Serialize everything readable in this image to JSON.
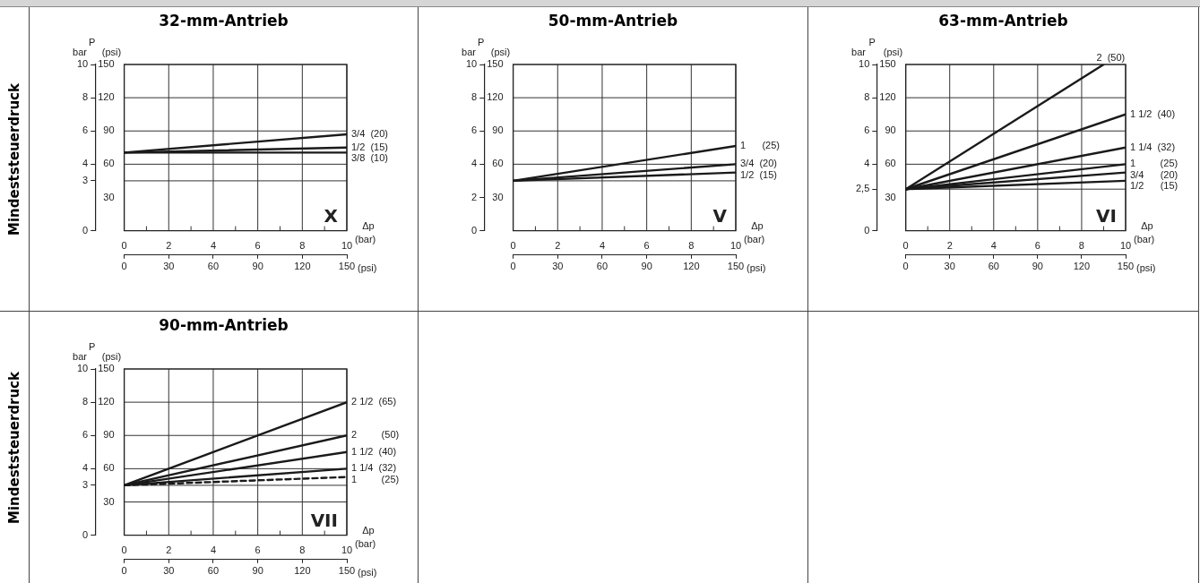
{
  "chart_data": [
    {
      "type": "line",
      "title": "32-mm-Antrieb",
      "xlabel": "Δp",
      "x2label": "(psi)",
      "ylabel": "bar",
      "y2label": "(psi)",
      "annotations": [
        "P",
        "(bar)",
        "X",
        "Mindeststeuerdruck"
      ],
      "xlim": [
        0,
        10
      ],
      "xticks": [
        0,
        {
          "value": 1,
          "label": null
        },
        2,
        {
          "value": 3,
          "label": null
        },
        4,
        {
          "value": 5,
          "label": null
        },
        6,
        {
          "value": 7,
          "label": null
        },
        8,
        {
          "value": 9,
          "label": null
        },
        10
      ],
      "x2lim": [
        0,
        150
      ],
      "x2ticks": [
        0,
        30,
        60,
        90,
        120,
        150
      ],
      "ylim": [
        0,
        10
      ],
      "yticks": [
        0,
        3,
        4,
        6,
        8,
        10
      ],
      "y2lim": [
        0,
        150
      ],
      "y2ticks": [
        30,
        60,
        90,
        120,
        150
      ],
      "grid": "x",
      "ref_lines": [
        {
          "axis": "y",
          "value": 3
        },
        {
          "axis": "y",
          "value": 4
        },
        {
          "axis": "y",
          "value": 6
        },
        {
          "axis": "y",
          "value": 8
        }
      ],
      "series": [
        {
          "name": "3/4  (20)",
          "color": "#1a1a1a",
          "x": [
            0,
            10
          ],
          "values": [
            4.7,
            5.8
          ]
        },
        {
          "name": "1/2  (15)",
          "color": "#1a1a1a",
          "x": [
            0,
            10
          ],
          "values": [
            4.7,
            5.0
          ]
        },
        {
          "name": "3/8  (10)",
          "color": "#1a1a1a",
          "x": [
            0,
            10
          ],
          "values": [
            4.7,
            4.7
          ]
        }
      ]
    },
    {
      "type": "line",
      "title": "50-mm-Antrieb",
      "xlabel": "Δp",
      "x2label": "(psi)",
      "ylabel": "bar",
      "y2label": "(psi)",
      "annotations": [
        "P",
        "(bar)",
        "V"
      ],
      "xlim": [
        0,
        10
      ],
      "xticks": [
        0,
        {
          "value": 1,
          "label": null
        },
        2,
        {
          "value": 3,
          "label": null
        },
        4,
        {
          "value": 5,
          "label": null
        },
        6,
        {
          "value": 7,
          "label": null
        },
        8,
        {
          "value": 9,
          "label": null
        },
        10
      ],
      "x2lim": [
        0,
        150
      ],
      "x2ticks": [
        0,
        30,
        60,
        90,
        120,
        150
      ],
      "ylim": [
        0,
        10
      ],
      "yticks": [
        0,
        2,
        4,
        6,
        8,
        10
      ],
      "y2lim": [
        0,
        150
      ],
      "y2ticks": [
        30,
        60,
        90,
        120,
        150
      ],
      "grid": "x",
      "ref_lines": [
        {
          "axis": "y",
          "value": 3
        },
        {
          "axis": "y",
          "value": 4
        },
        {
          "axis": "y",
          "value": 6
        },
        {
          "axis": "y",
          "value": 8
        }
      ],
      "series": [
        {
          "name": "1      (25)",
          "color": "#1a1a1a",
          "x": [
            0,
            10
          ],
          "values": [
            3.0,
            5.1
          ]
        },
        {
          "name": "3/4  (20)",
          "color": "#1a1a1a",
          "x": [
            0,
            10
          ],
          "values": [
            3.0,
            4.0
          ]
        },
        {
          "name": "1/2  (15)",
          "color": "#1a1a1a",
          "x": [
            0,
            10
          ],
          "values": [
            3.0,
            3.5
          ]
        }
      ]
    },
    {
      "type": "line",
      "title": "63-mm-Antrieb",
      "xlabel": "Δp",
      "x2label": "(psi)",
      "ylabel": "bar",
      "y2label": "(psi)",
      "annotations": [
        "P",
        "(bar)",
        "VI"
      ],
      "xlim": [
        0,
        10
      ],
      "xticks": [
        0,
        {
          "value": 1,
          "label": null
        },
        2,
        {
          "value": 3,
          "label": null
        },
        4,
        {
          "value": 5,
          "label": null
        },
        6,
        {
          "value": 7,
          "label": null
        },
        8,
        {
          "value": 9,
          "label": null
        },
        10
      ],
      "x2lim": [
        0,
        150
      ],
      "x2ticks": [
        0,
        30,
        60,
        90,
        120,
        150
      ],
      "ylim": [
        0,
        10
      ],
      "yticks": [
        0,
        {
          "value": 2.5,
          "label": "2,5"
        },
        4,
        6,
        8,
        10
      ],
      "y2lim": [
        0,
        150
      ],
      "y2ticks": [
        30,
        60,
        90,
        120,
        150
      ],
      "grid": "x",
      "ref_lines": [
        {
          "axis": "y",
          "value": 2.5
        },
        {
          "axis": "y",
          "value": 4
        },
        {
          "axis": "y",
          "value": 6
        },
        {
          "axis": "y",
          "value": 8
        }
      ],
      "series": [
        {
          "name": "2  (50)",
          "color": "#1a1a1a",
          "x": [
            0,
            9
          ],
          "values": [
            2.5,
            10
          ]
        },
        {
          "name": "1 1/2  (40)",
          "color": "#1a1a1a",
          "x": [
            0,
            10
          ],
          "values": [
            2.5,
            7.0
          ]
        },
        {
          "name": "1 1/4  (32)",
          "color": "#1a1a1a",
          "x": [
            0,
            10
          ],
          "values": [
            2.5,
            5.0
          ]
        },
        {
          "name": "1         (25)",
          "color": "#1a1a1a",
          "x": [
            0,
            10
          ],
          "values": [
            2.5,
            4.0
          ]
        },
        {
          "name": "3/4      (20)",
          "color": "#1a1a1a",
          "x": [
            0,
            10
          ],
          "values": [
            2.5,
            3.5
          ]
        },
        {
          "name": "1/2      (15)",
          "color": "#1a1a1a",
          "x": [
            0,
            10
          ],
          "values": [
            2.5,
            3.0
          ]
        }
      ]
    },
    {
      "type": "line",
      "title": "90-mm-Antrieb",
      "xlabel": "Δp",
      "x2label": "(psi)",
      "ylabel": "bar",
      "y2label": "(psi)",
      "annotations": [
        "P",
        "(bar)",
        "VII",
        "Mindeststeuerdruck"
      ],
      "xlim": [
        0,
        10
      ],
      "xticks": [
        0,
        {
          "value": 1,
          "label": null
        },
        2,
        {
          "value": 3,
          "label": null
        },
        4,
        {
          "value": 5,
          "label": null
        },
        6,
        {
          "value": 7,
          "label": null
        },
        8,
        {
          "value": 9,
          "label": null
        },
        10
      ],
      "x2lim": [
        0,
        150
      ],
      "x2ticks": [
        0,
        30,
        60,
        90,
        120,
        150
      ],
      "ylim": [
        0,
        10
      ],
      "yticks": [
        0,
        3,
        4,
        6,
        8,
        10
      ],
      "y2lim": [
        0,
        150
      ],
      "y2ticks": [
        30,
        60,
        90,
        120,
        150
      ],
      "grid": "x",
      "ref_lines": [
        {
          "axis": "y",
          "value": 2
        },
        {
          "axis": "y",
          "value": 3
        },
        {
          "axis": "y",
          "value": 4
        },
        {
          "axis": "y",
          "value": 6
        },
        {
          "axis": "y",
          "value": 8
        }
      ],
      "series": [
        {
          "name": "2 1/2  (65)",
          "color": "#1a1a1a",
          "x": [
            0,
            10
          ],
          "values": [
            3.0,
            8.0
          ]
        },
        {
          "name": "2         (50)",
          "color": "#1a1a1a",
          "x": [
            0,
            10
          ],
          "values": [
            3.0,
            6.0
          ]
        },
        {
          "name": "1 1/2  (40)",
          "color": "#1a1a1a",
          "x": [
            0,
            10
          ],
          "values": [
            3.0,
            5.0
          ]
        },
        {
          "name": "1 1/4  (32)",
          "color": "#1a1a1a",
          "x": [
            0,
            10
          ],
          "values": [
            3.0,
            4.0
          ]
        },
        {
          "name": "1         (25)",
          "color": "#1a1a1a",
          "line_style": "dashed",
          "x": [
            0,
            10
          ],
          "values": [
            3.0,
            3.5
          ]
        }
      ]
    }
  ]
}
